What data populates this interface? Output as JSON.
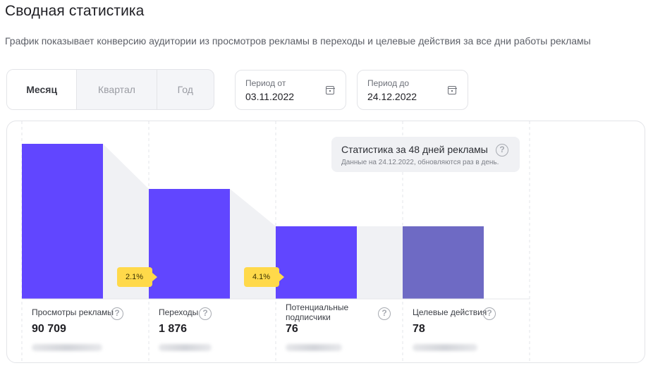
{
  "header": {
    "title": "Сводная статистика",
    "subtitle": "График показывает конверсию аудитории из просмотров рекламы в переходы и целевые действия за все дни работы рекламы"
  },
  "period": {
    "tabs": [
      {
        "label": "Месяц",
        "active": true
      },
      {
        "label": "Квартал",
        "active": false
      },
      {
        "label": "Год",
        "active": false
      }
    ]
  },
  "date_from": {
    "label": "Период от",
    "value": "03.11.2022",
    "icon": "calendar-icon"
  },
  "date_to": {
    "label": "Период до",
    "value": "24.12.2022",
    "icon": "calendar-icon"
  },
  "stats_tooltip": {
    "title": "Статистика за 48 дней рекламы",
    "note": "Данные на 24.12.2022, обновляются раз в день.",
    "icon": "help-icon"
  },
  "conversion_badges": [
    "2.1%",
    "4.1%"
  ],
  "metrics": [
    {
      "label": "Просмотры рекламы",
      "value": "90 709"
    },
    {
      "label": "Переходы",
      "value": "1 876"
    },
    {
      "label": "Потенциальные подписчики",
      "value": "76"
    },
    {
      "label": "Целевые действия",
      "value": "78"
    }
  ],
  "help_glyph": "?",
  "colors": {
    "bar_primary": "#6146ff",
    "bar_secondary": "#6e6ac4",
    "connector": "#f0f1f4",
    "badge": "#ffd94a"
  }
}
